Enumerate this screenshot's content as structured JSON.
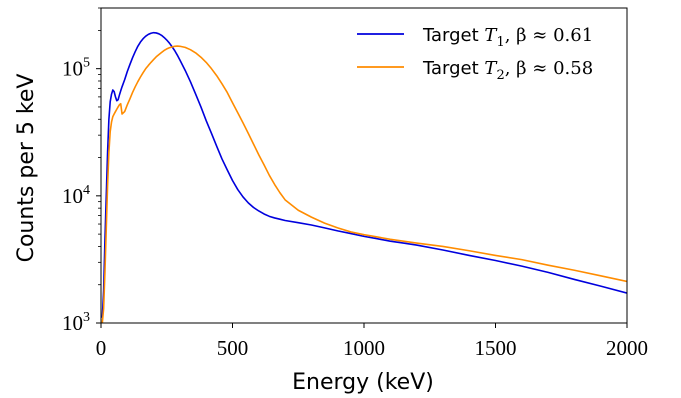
{
  "chart_data": {
    "type": "line",
    "xlabel": "Energy (keV)",
    "ylabel": "Counts per 5 keV",
    "x_scale": "linear",
    "y_scale": "log",
    "xlim": [
      0,
      2000
    ],
    "ylim": [
      1000,
      300000
    ],
    "x_ticks": [
      {
        "value": 0,
        "label": "0"
      },
      {
        "value": 500,
        "label": "500"
      },
      {
        "value": 1000,
        "label": "1000"
      },
      {
        "value": 1500,
        "label": "1500"
      },
      {
        "value": 2000,
        "label": "2000"
      }
    ],
    "y_ticks": [
      {
        "value": 1000,
        "base": "10",
        "exp": "3"
      },
      {
        "value": 10000,
        "base": "10",
        "exp": "4"
      },
      {
        "value": 100000,
        "base": "10",
        "exp": "5"
      }
    ],
    "grid": false,
    "legend_position": "top-right",
    "series": [
      {
        "name": "Target T1, β ≈ 0.61",
        "legend_prefix": "Target ",
        "legend_var": "T",
        "legend_sub": "1",
        "legend_suffix": ", β ≈ 0.61",
        "color": "#0000dd",
        "x": [
          5,
          10,
          15,
          20,
          25,
          30,
          35,
          40,
          45,
          50,
          55,
          60,
          65,
          70,
          75,
          80,
          90,
          100,
          110,
          120,
          130,
          140,
          150,
          160,
          170,
          180,
          190,
          200,
          210,
          220,
          230,
          240,
          250,
          260,
          270,
          280,
          290,
          300,
          320,
          340,
          360,
          380,
          400,
          420,
          440,
          460,
          480,
          500,
          520,
          540,
          560,
          580,
          600,
          620,
          640,
          660,
          680,
          700,
          750,
          800,
          850,
          900,
          950,
          1000,
          1050,
          1100,
          1150,
          1200,
          1300,
          1400,
          1500,
          1600,
          1700,
          1800,
          1900,
          2000
        ],
        "y": [
          1100,
          1800,
          4500,
          10000,
          22000,
          40000,
          55000,
          63000,
          68000,
          66000,
          60000,
          56000,
          57000,
          62000,
          67000,
          72000,
          82000,
          95000,
          108000,
          122000,
          136000,
          150000,
          162000,
          172000,
          180000,
          186000,
          190000,
          192000,
          191000,
          188000,
          183000,
          176000,
          168000,
          159000,
          149000,
          139000,
          128000,
          117000,
          97000,
          79000,
          63000,
          50000,
          39000,
          31000,
          24500,
          19500,
          16000,
          13200,
          11200,
          9800,
          8800,
          8100,
          7600,
          7200,
          6900,
          6700,
          6550,
          6400,
          6150,
          5900,
          5600,
          5300,
          5050,
          4800,
          4600,
          4400,
          4250,
          4100,
          3750,
          3400,
          3100,
          2800,
          2500,
          2200,
          1950,
          1720
        ]
      },
      {
        "name": "Target T2, β ≈ 0.58",
        "legend_prefix": "Target ",
        "legend_var": "T",
        "legend_sub": "2",
        "legend_suffix": ", β ≈ 0.58",
        "color": "#ff8c00",
        "x": [
          5,
          10,
          15,
          20,
          25,
          30,
          35,
          40,
          45,
          50,
          55,
          60,
          65,
          70,
          75,
          80,
          90,
          100,
          110,
          120,
          130,
          140,
          150,
          160,
          170,
          180,
          190,
          200,
          210,
          220,
          230,
          240,
          250,
          260,
          270,
          280,
          290,
          300,
          320,
          340,
          360,
          380,
          400,
          420,
          440,
          460,
          480,
          500,
          520,
          540,
          560,
          580,
          600,
          620,
          640,
          660,
          680,
          700,
          750,
          800,
          850,
          900,
          950,
          1000,
          1050,
          1100,
          1150,
          1200,
          1300,
          1400,
          1500,
          1600,
          1700,
          1800,
          1900,
          2000
        ],
        "y": [
          1000,
          1300,
          2500,
          5500,
          12000,
          22000,
          32000,
          38000,
          42000,
          44000,
          46000,
          48000,
          50000,
          52000,
          53000,
          44000,
          46000,
          52000,
          58000,
          65000,
          72000,
          79000,
          86000,
          93000,
          100000,
          106000,
          112000,
          118000,
          124000,
          129000,
          134000,
          139000,
          143000,
          146000,
          148000,
          150000,
          150500,
          150000,
          147000,
          141000,
          133000,
          123000,
          112000,
          100000,
          88000,
          76000,
          65000,
          54000,
          45000,
          37500,
          31000,
          25500,
          21000,
          17500,
          14500,
          12300,
          10600,
          9300,
          7700,
          6800,
          6100,
          5600,
          5200,
          4950,
          4750,
          4550,
          4400,
          4250,
          4000,
          3700,
          3400,
          3150,
          2850,
          2600,
          2350,
          2120
        ]
      }
    ]
  }
}
